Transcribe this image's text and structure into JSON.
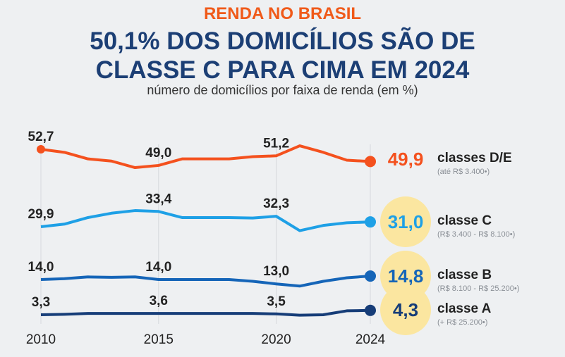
{
  "header": {
    "kicker": "RENDA NO BRASIL",
    "title_line1": "50,1% DOS DOMICÍLIOS SÃO DE",
    "title_line2": "CLASSE C PARA CIMA EM 2024",
    "subtitle": "número de domicílios por faixa de renda (em %)"
  },
  "chart_data": {
    "type": "line",
    "title": "50,1% DOS DOMICÍLIOS SÃO DE CLASSE C PARA CIMA EM 2024",
    "xlabel": "",
    "ylabel": "número de domicílios por faixa de renda (em %)",
    "x": [
      2010,
      2011,
      2012,
      2013,
      2014,
      2015,
      2016,
      2017,
      2018,
      2019,
      2020,
      2021,
      2022,
      2023,
      2024
    ],
    "x_ticks": [
      "2010",
      "2015",
      "2020",
      "2024"
    ],
    "series": [
      {
        "name": "classes D/E",
        "range": "(até R$ 3.400•)",
        "color": "#f4511e",
        "final_label": "49,9",
        "highlight": false,
        "values": [
          52.7,
          52.0,
          50.5,
          50.0,
          48.5,
          49.0,
          50.5,
          50.5,
          50.5,
          51.0,
          51.2,
          53.5,
          52.0,
          50.2,
          49.9
        ],
        "point_labels": {
          "2010": "52,7",
          "2015": "49,0",
          "2020": "51,2"
        }
      },
      {
        "name": "classe C",
        "range": "(R$ 3.400 - R$ 8.100•)",
        "color": "#1ea0e6",
        "final_label": "31,0",
        "highlight": true,
        "values": [
          29.9,
          30.5,
          32.0,
          33.0,
          33.6,
          33.4,
          32.0,
          32.0,
          32.0,
          31.9,
          32.3,
          29.0,
          30.2,
          30.8,
          31.0
        ],
        "point_labels": {
          "2010": "29,9",
          "2015": "33,4",
          "2020": "32,3"
        }
      },
      {
        "name": "classe B",
        "range": "(R$ 8.100 - R$ 25.200•)",
        "color": "#1565b8",
        "final_label": "14,8",
        "highlight": true,
        "values": [
          14.0,
          14.2,
          14.6,
          14.5,
          14.6,
          14.0,
          14.0,
          14.0,
          14.0,
          13.6,
          13.0,
          12.5,
          13.6,
          14.4,
          14.8
        ],
        "point_labels": {
          "2010": "14,0",
          "2015": "14,0",
          "2020": "13,0"
        }
      },
      {
        "name": "classe A",
        "range": "(+ R$ 25.200•)",
        "color": "#163d78",
        "final_label": "4,3",
        "highlight": true,
        "values": [
          3.3,
          3.4,
          3.6,
          3.6,
          3.6,
          3.6,
          3.6,
          3.6,
          3.6,
          3.6,
          3.5,
          3.2,
          3.3,
          4.2,
          4.3
        ],
        "point_labels": {
          "2010": "3,3",
          "2015": "3,6",
          "2020": "3,5"
        }
      }
    ],
    "grid": "vertical at tick years",
    "legend": "right"
  },
  "colors": {
    "highlight": "#fbe6a0",
    "text": "#222222",
    "subtext": "#8a8f96",
    "grid": "#d6d9dd"
  }
}
